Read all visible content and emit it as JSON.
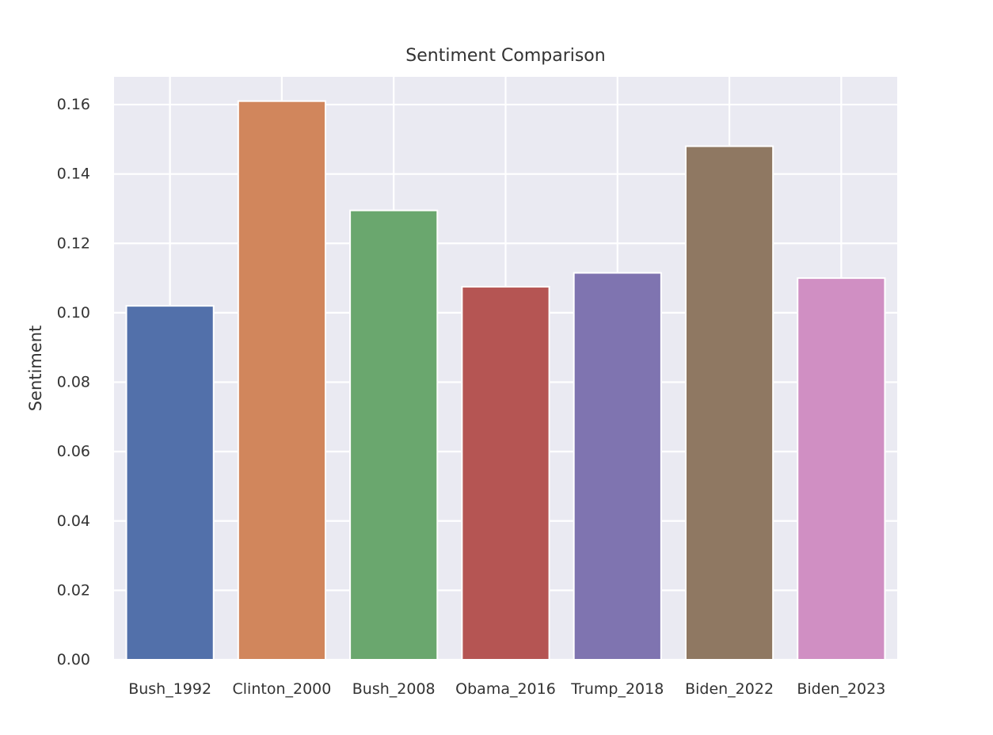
{
  "chart_data": {
    "type": "bar",
    "title": "Sentiment Comparison",
    "xlabel": "",
    "ylabel": "Sentiment",
    "categories": [
      "Bush_1992",
      "Clinton_2000",
      "Bush_2008",
      "Obama_2016",
      "Trump_2018",
      "Biden_2022",
      "Biden_2023"
    ],
    "values": [
      0.102,
      0.161,
      0.1295,
      0.1075,
      0.1115,
      0.148,
      0.11
    ],
    "colors": [
      "#5270aa",
      "#d1865c",
      "#6aa76e",
      "#b55553",
      "#7f74b0",
      "#8f7862",
      "#d08fc3"
    ],
    "ylim": [
      0,
      0.168
    ],
    "yticks": [
      "0.00",
      "0.02",
      "0.04",
      "0.06",
      "0.08",
      "0.10",
      "0.12",
      "0.14",
      "0.16"
    ],
    "grid": true,
    "background_color": "#eaeaf2",
    "grid_color": "#ffffff",
    "legend": "none"
  }
}
